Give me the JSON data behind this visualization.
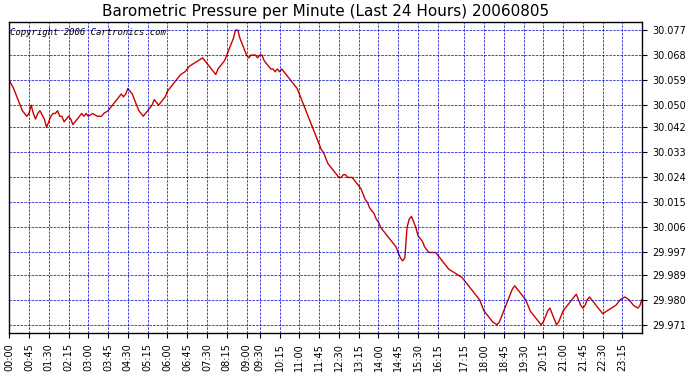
{
  "title": "Barometric Pressure per Minute (Last 24 Hours) 20060805",
  "copyright": "Copyright 2006 Cartronics.com",
  "line_color": "#cc0000",
  "bg_color": "#ffffff",
  "plot_bg_color": "#ffffff",
  "grid_color": "#0000cc",
  "yticks": [
    29.971,
    29.98,
    29.989,
    29.997,
    30.006,
    30.015,
    30.024,
    30.033,
    30.042,
    30.05,
    30.059,
    30.068,
    30.077
  ],
  "ylim": [
    29.968,
    30.08
  ],
  "xtick_labels": [
    "00:00",
    "00:45",
    "01:30",
    "02:15",
    "03:00",
    "03:45",
    "04:30",
    "05:15",
    "06:00",
    "06:45",
    "07:30",
    "08:15",
    "09:00",
    "09:30",
    "10:15",
    "11:00",
    "11:45",
    "12:30",
    "13:15",
    "14:00",
    "14:45",
    "15:30",
    "16:15",
    "17:15",
    "18:00",
    "18:45",
    "19:30",
    "20:15",
    "21:00",
    "21:45",
    "22:30",
    "23:15"
  ],
  "x_values": [
    0,
    45,
    90,
    135,
    180,
    225,
    270,
    315,
    360,
    405,
    450,
    495,
    540,
    570,
    615,
    660,
    705,
    750,
    795,
    840,
    885,
    930,
    975,
    1035,
    1080,
    1125,
    1170,
    1215,
    1260,
    1305,
    1350,
    1395
  ],
  "pressure_data": [
    [
      0,
      30.059
    ],
    [
      10,
      30.056
    ],
    [
      20,
      30.052
    ],
    [
      30,
      30.048
    ],
    [
      40,
      30.046
    ],
    [
      45,
      30.047
    ],
    [
      50,
      30.05
    ],
    [
      55,
      30.047
    ],
    [
      60,
      30.045
    ],
    [
      65,
      30.047
    ],
    [
      70,
      30.048
    ],
    [
      80,
      30.045
    ],
    [
      85,
      30.042
    ],
    [
      90,
      30.044
    ],
    [
      95,
      30.046
    ],
    [
      100,
      30.047
    ],
    [
      105,
      30.047
    ],
    [
      110,
      30.048
    ],
    [
      115,
      30.046
    ],
    [
      120,
      30.046
    ],
    [
      125,
      30.044
    ],
    [
      130,
      30.045
    ],
    [
      135,
      30.046
    ],
    [
      140,
      30.045
    ],
    [
      145,
      30.043
    ],
    [
      150,
      30.044
    ],
    [
      160,
      30.046
    ],
    [
      165,
      30.047
    ],
    [
      170,
      30.046
    ],
    [
      175,
      30.047
    ],
    [
      180,
      30.046
    ],
    [
      190,
      30.047
    ],
    [
      200,
      30.046
    ],
    [
      210,
      30.046
    ],
    [
      215,
      30.047
    ],
    [
      225,
      30.048
    ],
    [
      230,
      30.049
    ],
    [
      240,
      30.051
    ],
    [
      250,
      30.053
    ],
    [
      255,
      30.054
    ],
    [
      260,
      30.053
    ],
    [
      265,
      30.054
    ],
    [
      270,
      30.056
    ],
    [
      275,
      30.055
    ],
    [
      280,
      30.054
    ],
    [
      285,
      30.052
    ],
    [
      290,
      30.05
    ],
    [
      295,
      30.048
    ],
    [
      300,
      30.047
    ],
    [
      305,
      30.046
    ],
    [
      310,
      30.047
    ],
    [
      315,
      30.048
    ],
    [
      320,
      30.049
    ],
    [
      325,
      30.05
    ],
    [
      330,
      30.052
    ],
    [
      335,
      30.051
    ],
    [
      340,
      30.05
    ],
    [
      345,
      30.051
    ],
    [
      350,
      30.052
    ],
    [
      355,
      30.053
    ],
    [
      360,
      30.055
    ],
    [
      370,
      30.057
    ],
    [
      380,
      30.059
    ],
    [
      390,
      30.061
    ],
    [
      400,
      30.062
    ],
    [
      405,
      30.063
    ],
    [
      410,
      30.064
    ],
    [
      420,
      30.065
    ],
    [
      430,
      30.066
    ],
    [
      440,
      30.067
    ],
    [
      445,
      30.066
    ],
    [
      450,
      30.065
    ],
    [
      455,
      30.064
    ],
    [
      460,
      30.063
    ],
    [
      465,
      30.062
    ],
    [
      470,
      30.061
    ],
    [
      475,
      30.063
    ],
    [
      480,
      30.064
    ],
    [
      485,
      30.065
    ],
    [
      490,
      30.066
    ],
    [
      495,
      30.068
    ],
    [
      500,
      30.07
    ],
    [
      505,
      30.072
    ],
    [
      510,
      30.074
    ],
    [
      515,
      30.077
    ],
    [
      520,
      30.077
    ],
    [
      525,
      30.074
    ],
    [
      530,
      30.072
    ],
    [
      535,
      30.07
    ],
    [
      540,
      30.068
    ],
    [
      545,
      30.067
    ],
    [
      550,
      30.068
    ],
    [
      555,
      30.068
    ],
    [
      560,
      30.068
    ],
    [
      565,
      30.067
    ],
    [
      570,
      30.068
    ],
    [
      575,
      30.068
    ],
    [
      580,
      30.066
    ],
    [
      585,
      30.065
    ],
    [
      590,
      30.064
    ],
    [
      595,
      30.063
    ],
    [
      600,
      30.063
    ],
    [
      605,
      30.062
    ],
    [
      610,
      30.063
    ],
    [
      615,
      30.062
    ],
    [
      620,
      30.063
    ],
    [
      625,
      30.062
    ],
    [
      630,
      30.061
    ],
    [
      635,
      30.06
    ],
    [
      640,
      30.059
    ],
    [
      645,
      30.058
    ],
    [
      650,
      30.057
    ],
    [
      655,
      30.056
    ],
    [
      660,
      30.054
    ],
    [
      665,
      30.052
    ],
    [
      670,
      30.05
    ],
    [
      675,
      30.048
    ],
    [
      680,
      30.046
    ],
    [
      685,
      30.044
    ],
    [
      690,
      30.042
    ],
    [
      695,
      30.04
    ],
    [
      700,
      30.038
    ],
    [
      705,
      30.036
    ],
    [
      710,
      30.034
    ],
    [
      715,
      30.033
    ],
    [
      720,
      30.031
    ],
    [
      725,
      30.029
    ],
    [
      730,
      30.028
    ],
    [
      735,
      30.027
    ],
    [
      740,
      30.026
    ],
    [
      745,
      30.025
    ],
    [
      750,
      30.024
    ],
    [
      755,
      30.024
    ],
    [
      760,
      30.025
    ],
    [
      765,
      30.025
    ],
    [
      770,
      30.024
    ],
    [
      775,
      30.024
    ],
    [
      780,
      30.024
    ],
    [
      785,
      30.023
    ],
    [
      790,
      30.022
    ],
    [
      795,
      30.021
    ],
    [
      800,
      30.02
    ],
    [
      805,
      30.018
    ],
    [
      810,
      30.016
    ],
    [
      815,
      30.015
    ],
    [
      820,
      30.013
    ],
    [
      825,
      30.012
    ],
    [
      830,
      30.011
    ],
    [
      835,
      30.009
    ],
    [
      840,
      30.008
    ],
    [
      845,
      30.006
    ],
    [
      850,
      30.005
    ],
    [
      855,
      30.004
    ],
    [
      860,
      30.003
    ],
    [
      865,
      30.002
    ],
    [
      870,
      30.001
    ],
    [
      875,
      30.0
    ],
    [
      880,
      29.999
    ],
    [
      885,
      29.997
    ],
    [
      890,
      29.995
    ],
    [
      895,
      29.994
    ],
    [
      900,
      29.995
    ],
    [
      905,
      30.006
    ],
    [
      910,
      30.009
    ],
    [
      915,
      30.01
    ],
    [
      920,
      30.008
    ],
    [
      925,
      30.006
    ],
    [
      930,
      30.003
    ],
    [
      935,
      30.002
    ],
    [
      940,
      30.001
    ],
    [
      945,
      29.999
    ],
    [
      950,
      29.998
    ],
    [
      955,
      29.997
    ],
    [
      960,
      29.997
    ],
    [
      965,
      29.997
    ],
    [
      970,
      29.997
    ],
    [
      975,
      29.996
    ],
    [
      980,
      29.995
    ],
    [
      985,
      29.994
    ],
    [
      990,
      29.993
    ],
    [
      995,
      29.992
    ],
    [
      1000,
      29.991
    ],
    [
      1010,
      29.99
    ],
    [
      1020,
      29.989
    ],
    [
      1030,
      29.988
    ],
    [
      1035,
      29.987
    ],
    [
      1040,
      29.986
    ],
    [
      1045,
      29.985
    ],
    [
      1050,
      29.984
    ],
    [
      1055,
      29.983
    ],
    [
      1060,
      29.982
    ],
    [
      1065,
      29.981
    ],
    [
      1070,
      29.98
    ],
    [
      1075,
      29.978
    ],
    [
      1080,
      29.976
    ],
    [
      1085,
      29.975
    ],
    [
      1090,
      29.974
    ],
    [
      1095,
      29.973
    ],
    [
      1100,
      29.972
    ],
    [
      1110,
      29.971
    ],
    [
      1115,
      29.972
    ],
    [
      1120,
      29.974
    ],
    [
      1125,
      29.976
    ],
    [
      1130,
      29.978
    ],
    [
      1135,
      29.98
    ],
    [
      1140,
      29.982
    ],
    [
      1145,
      29.984
    ],
    [
      1150,
      29.985
    ],
    [
      1155,
      29.984
    ],
    [
      1160,
      29.983
    ],
    [
      1165,
      29.982
    ],
    [
      1170,
      29.981
    ],
    [
      1175,
      29.98
    ],
    [
      1180,
      29.978
    ],
    [
      1185,
      29.976
    ],
    [
      1190,
      29.975
    ],
    [
      1195,
      29.974
    ],
    [
      1200,
      29.973
    ],
    [
      1205,
      29.972
    ],
    [
      1210,
      29.971
    ],
    [
      1215,
      29.972
    ],
    [
      1220,
      29.974
    ],
    [
      1225,
      29.976
    ],
    [
      1230,
      29.977
    ],
    [
      1235,
      29.975
    ],
    [
      1240,
      29.973
    ],
    [
      1245,
      29.971
    ],
    [
      1250,
      29.972
    ],
    [
      1255,
      29.974
    ],
    [
      1260,
      29.976
    ],
    [
      1265,
      29.977
    ],
    [
      1270,
      29.978
    ],
    [
      1275,
      29.979
    ],
    [
      1280,
      29.98
    ],
    [
      1285,
      29.981
    ],
    [
      1290,
      29.982
    ],
    [
      1295,
      29.98
    ],
    [
      1300,
      29.978
    ],
    [
      1305,
      29.977
    ],
    [
      1310,
      29.978
    ],
    [
      1315,
      29.98
    ],
    [
      1320,
      29.981
    ],
    [
      1325,
      29.98
    ],
    [
      1330,
      29.979
    ],
    [
      1335,
      29.978
    ],
    [
      1340,
      29.977
    ],
    [
      1345,
      29.976
    ],
    [
      1350,
      29.975
    ],
    [
      1360,
      29.976
    ],
    [
      1370,
      29.977
    ],
    [
      1380,
      29.978
    ],
    [
      1390,
      29.98
    ],
    [
      1400,
      29.981
    ],
    [
      1410,
      29.98
    ],
    [
      1420,
      29.978
    ],
    [
      1430,
      29.977
    ],
    [
      1435,
      29.978
    ],
    [
      1439,
      29.98
    ]
  ],
  "title_fontsize": 11,
  "tick_fontsize": 7,
  "copyright_fontsize": 6.5
}
